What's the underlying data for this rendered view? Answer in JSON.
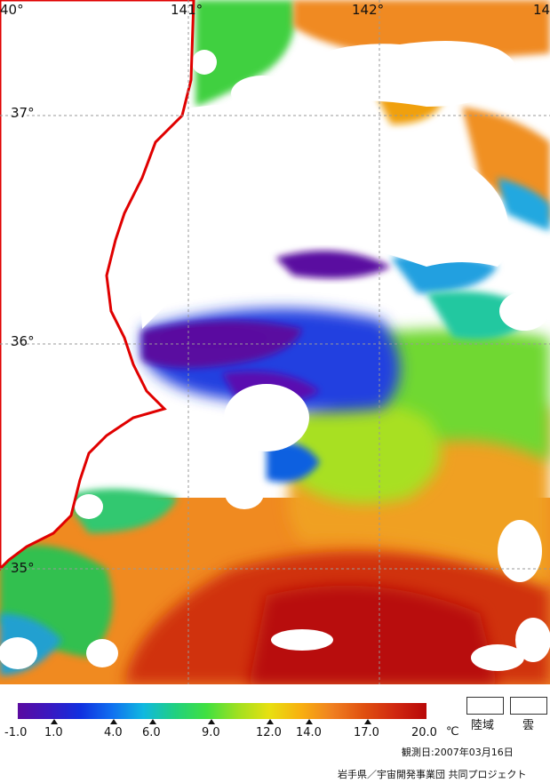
{
  "map": {
    "lon_labels": [
      "40°",
      "141°",
      "142°",
      "14"
    ],
    "lat_labels": [
      "37°",
      "36°",
      "35°"
    ]
  },
  "legend": {
    "colorbar_stops": [
      "#5a0aa0",
      "#3a18c0",
      "#1030e0",
      "#1070f0",
      "#10b8e0",
      "#20d080",
      "#40e040",
      "#a0e020",
      "#e8e010",
      "#f8b010",
      "#f08020",
      "#e05010",
      "#d02810",
      "#b80808"
    ],
    "ticks": [
      "-1.0",
      "1.0",
      "4.0",
      "6.0",
      "9.0",
      "12.0",
      "14.0",
      "17.0",
      "20.0"
    ],
    "unit": "℃",
    "land_label": "陸域",
    "cloud_label": "雲"
  },
  "footer": {
    "observation_date": "観測日:2007年03月16日",
    "credit": "岩手県／宇宙開発事業団 共同プロジェクト"
  }
}
